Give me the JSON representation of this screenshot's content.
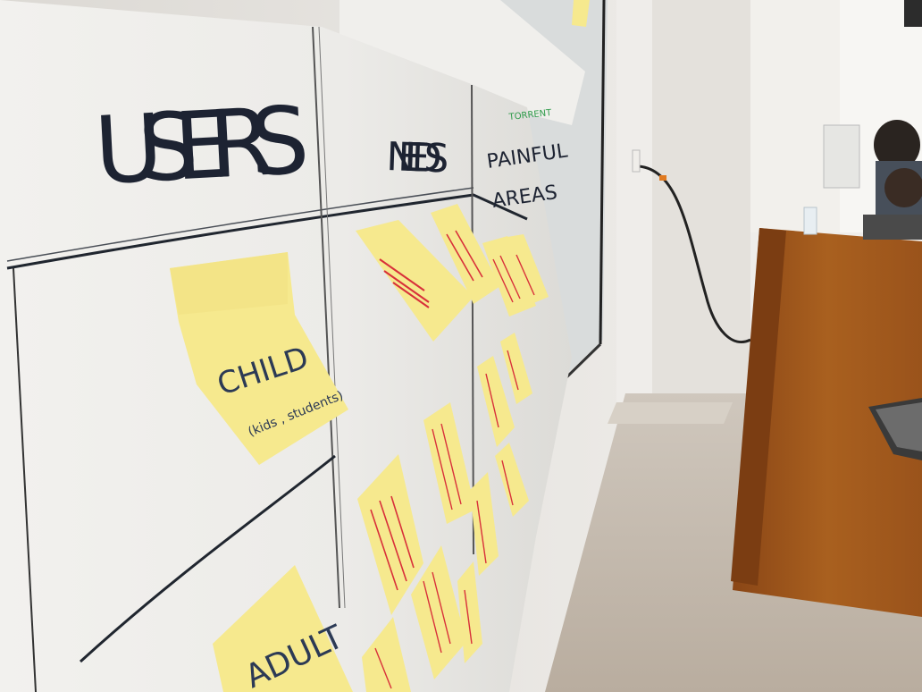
{
  "board": {
    "headers": {
      "users": "USERS",
      "needs": "NEEDS",
      "painful_top": "PAINFUL",
      "painful_bottom": "AREAS",
      "green_label": "TORRENT"
    },
    "notes": {
      "child_main": "CHILD",
      "child_sub": "(kids , students)",
      "adult_main": "ADULT"
    }
  },
  "colors": {
    "paper": "#f4f3f0",
    "sticky": "#f6e98e",
    "ink": "#1d2332",
    "red_ink": "#d8303a",
    "green_ink": "#2e9b4a",
    "podium": "#a55a1f"
  }
}
